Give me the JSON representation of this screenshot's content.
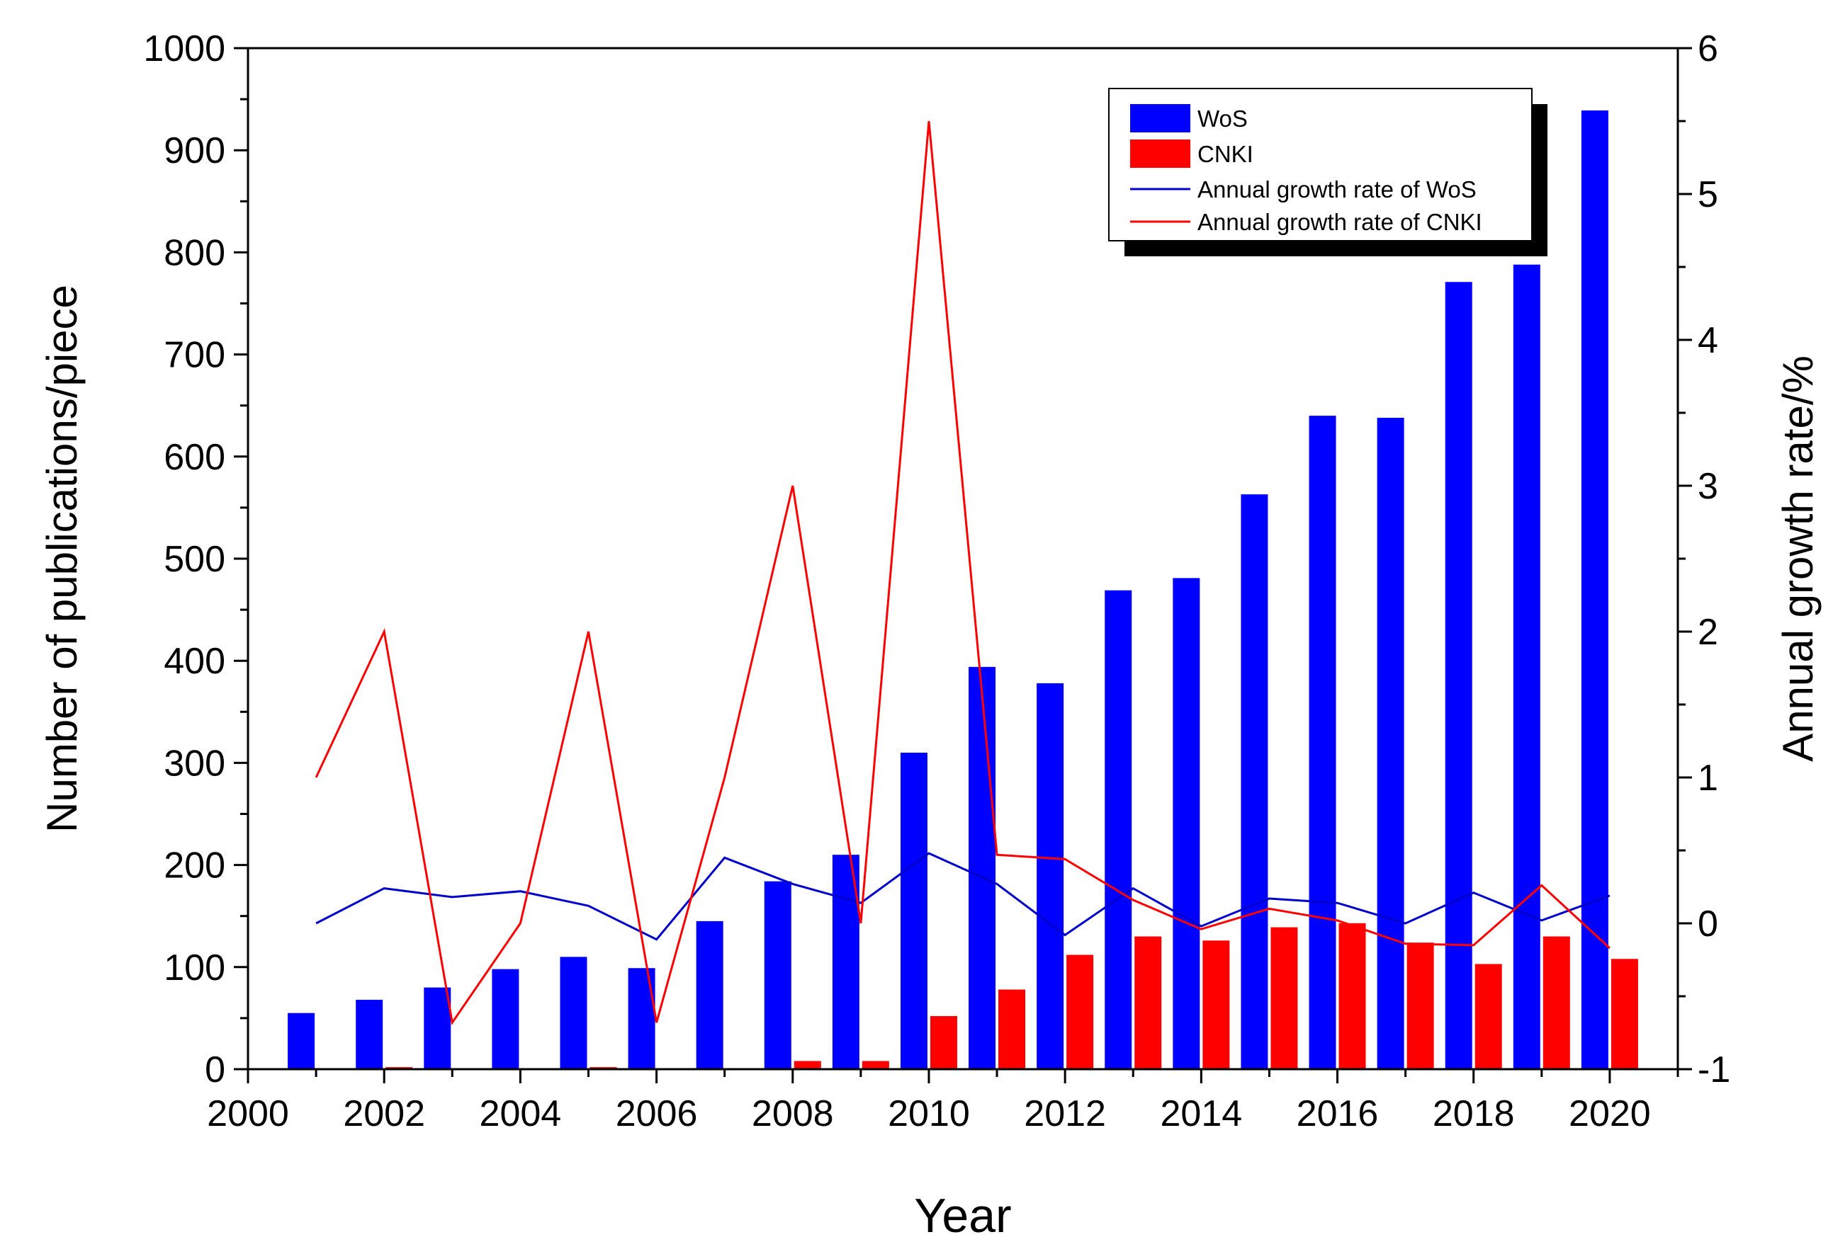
{
  "chart_data": {
    "type": "bar",
    "xlabel": "Year",
    "ylabel": "Number of publications/piece",
    "y2label": "Annual growth rate/%",
    "x_range": [
      2000,
      2021
    ],
    "x_ticks": [
      "2000",
      "2002",
      "2004",
      "2006",
      "2008",
      "2010",
      "2012",
      "2014",
      "2016",
      "2018",
      "2020"
    ],
    "ylim": [
      0,
      1000
    ],
    "y_ticks": [
      "0",
      "100",
      "200",
      "300",
      "400",
      "500",
      "600",
      "700",
      "800",
      "900",
      "1000"
    ],
    "y2lim": [
      -1,
      6
    ],
    "y2_ticks": [
      "-1",
      "0",
      "1",
      "2",
      "3",
      "4",
      "5",
      "6"
    ],
    "legend_position": "top-right",
    "years": [
      2001,
      2002,
      2003,
      2004,
      2005,
      2006,
      2007,
      2008,
      2009,
      2010,
      2011,
      2012,
      2013,
      2014,
      2015,
      2016,
      2017,
      2018,
      2019,
      2020
    ],
    "series": [
      {
        "name": "WoS",
        "kind": "bar",
        "color": "#0000ff",
        "values": [
          55,
          68,
          80,
          98,
          110,
          99,
          145,
          184,
          210,
          310,
          394,
          378,
          469,
          481,
          563,
          640,
          638,
          771,
          788,
          939
        ]
      },
      {
        "name": "CNKI",
        "kind": "bar",
        "color": "#ff0000",
        "values": [
          0,
          2,
          0,
          0,
          2,
          0,
          1,
          8,
          8,
          52,
          78,
          112,
          130,
          126,
          139,
          143,
          124,
          103,
          130,
          108
        ]
      },
      {
        "name": "Annual growth rate of WoS",
        "kind": "line",
        "axis": "right",
        "color": "#0000cc",
        "values": [
          0.0,
          0.24,
          0.18,
          0.22,
          0.12,
          -0.11,
          0.45,
          0.27,
          0.14,
          0.48,
          0.27,
          -0.08,
          0.24,
          -0.02,
          0.17,
          0.14,
          0.0,
          0.21,
          0.02,
          0.19
        ]
      },
      {
        "name": "Annual growth rate of CNKI",
        "kind": "line",
        "axis": "right",
        "color": "#ff0000",
        "values": [
          1.0,
          2.0,
          -0.68,
          0.0,
          2.0,
          -0.68,
          1.0,
          3.0,
          0.0,
          5.5,
          0.47,
          0.44,
          0.16,
          -0.04,
          0.1,
          0.02,
          -0.14,
          -0.15,
          0.26,
          -0.17
        ]
      }
    ]
  }
}
